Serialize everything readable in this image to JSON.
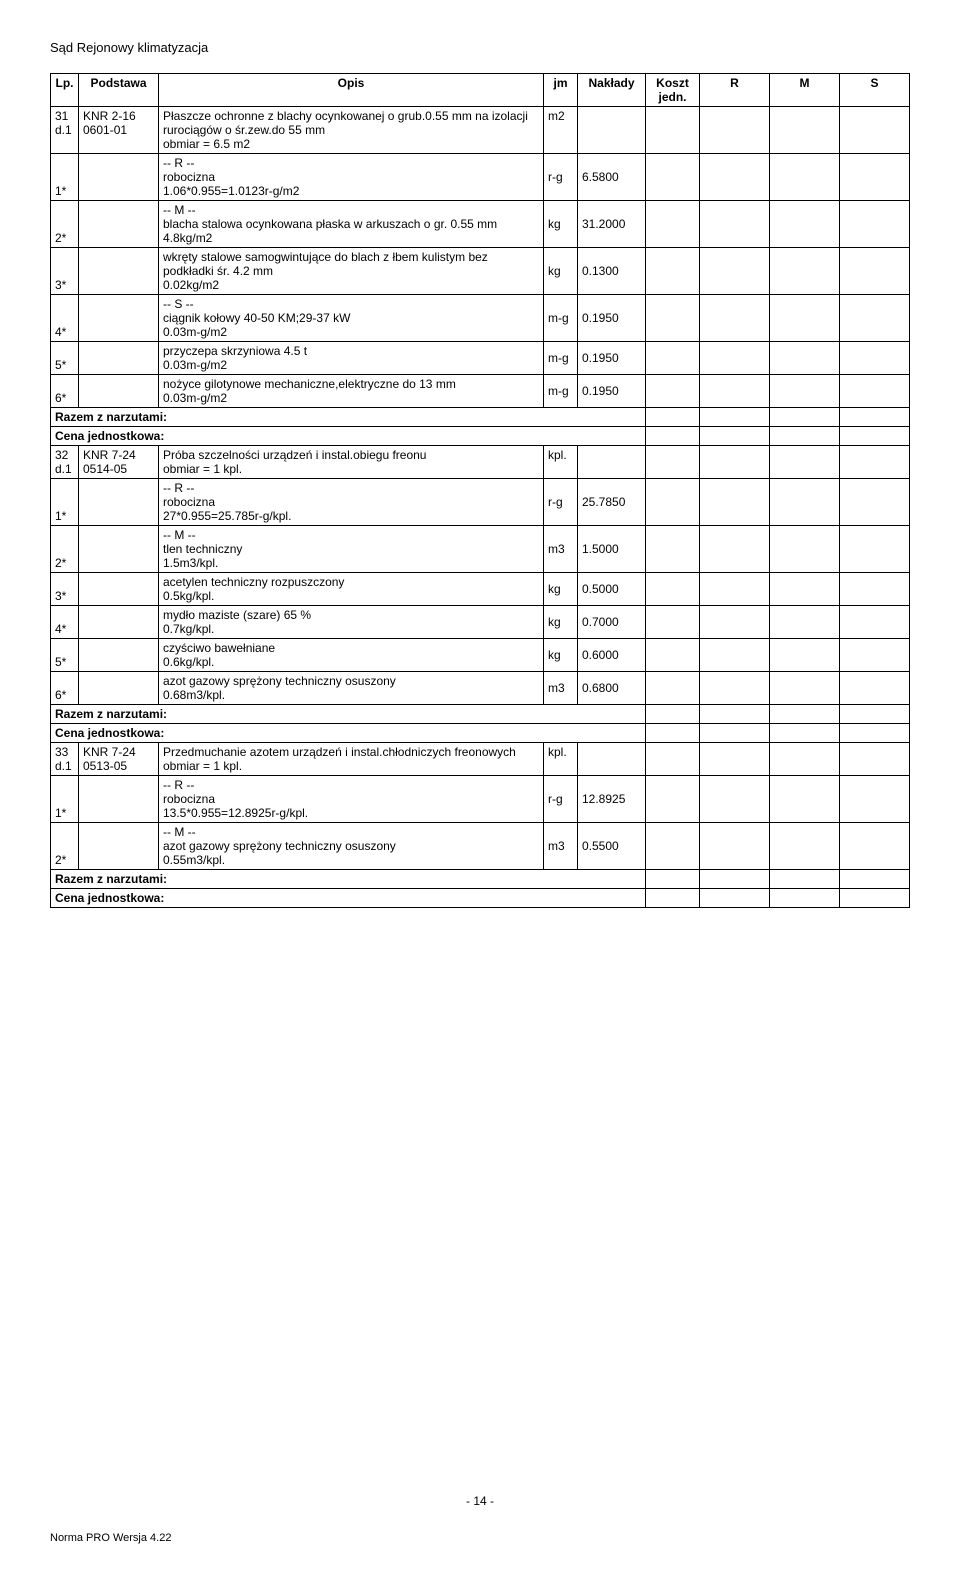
{
  "doc_title": "Sąd Rejonowy klimatyzacja",
  "headers": {
    "lp": "Lp.",
    "podstawa": "Podstawa",
    "opis": "Opis",
    "jm": "jm",
    "naklady": "Nakłady",
    "koszt": "Koszt jedn.",
    "r": "R",
    "m": "M",
    "s": "S"
  },
  "rows": [
    {
      "lp1": "31",
      "lp2": "d.1",
      "pod1": "KNR 2-16",
      "pod2": "0601-01",
      "opis": "Płaszcze ochronne z blachy ocynkowanej o grub.0.55 mm na izolacji rurociągów o śr.zew.do 55 mm\nobmiar  =  6.5 m2",
      "jm": "m2",
      "nak": ""
    },
    {
      "lp": "1*",
      "opis": "-- R --\nrobocizna\n1.06*0.955=1.0123r-g/m2",
      "jm": "r-g",
      "nak": "6.5800"
    },
    {
      "lp": "2*",
      "opis": "-- M --\nblacha stalowa ocynkowana płaska w arkuszach o gr. 0.55 mm\n4.8kg/m2",
      "jm": "kg",
      "nak": "31.2000",
      "nbb": true
    },
    {
      "lp": "3*",
      "opis": "wkręty stalowe samogwintujące do blach z łbem kulistym bez podkładki śr. 4.2 mm\n0.02kg/m2",
      "jm": "kg",
      "nak": "0.1300",
      "nbt": true
    },
    {
      "lp": "4*",
      "opis": "-- S --\nciągnik kołowy 40-50 KM;29-37 kW\n0.03m-g/m2",
      "jm": "m-g",
      "nak": "0.1950",
      "nbb": true
    },
    {
      "lp": "5*",
      "opis": "przyczepa skrzyniowa 4.5 t\n0.03m-g/m2",
      "jm": "m-g",
      "nak": "0.1950",
      "nbt": true,
      "nbb": true
    },
    {
      "lp": "6*",
      "opis": "nożyce gilotynowe mechaniczne,elektryczne do 13 mm\n0.03m-g/m2",
      "jm": "m-g",
      "nak": "0.1950",
      "nbt": true
    },
    {
      "summary": "Razem z narzutami:"
    },
    {
      "summary": "Cena jednostkowa:"
    },
    {
      "lp1": "32",
      "lp2": "d.1",
      "pod1": "KNR 7-24",
      "pod2": "0514-05",
      "opis": "Próba szczelności urządzeń i instal.obiegu freonu\nobmiar  =  1 kpl.",
      "jm": "kpl.",
      "nak": ""
    },
    {
      "lp": "1*",
      "opis": "-- R --\nrobocizna\n27*0.955=25.785r-g/kpl.",
      "jm": "r-g",
      "nak": "25.7850"
    },
    {
      "lp": "2*",
      "opis": "-- M --\ntlen techniczny\n1.5m3/kpl.",
      "jm": "m3",
      "nak": "1.5000",
      "nbb": true
    },
    {
      "lp": "3*",
      "opis": "acetylen techniczny rozpuszczony\n0.5kg/kpl.",
      "jm": "kg",
      "nak": "0.5000",
      "nbt": true,
      "nbb": true
    },
    {
      "lp": "4*",
      "opis": "mydło maziste (szare) 65 %\n0.7kg/kpl.",
      "jm": "kg",
      "nak": "0.7000",
      "nbt": true,
      "nbb": true
    },
    {
      "lp": "5*",
      "opis": "czyściwo bawełniane\n0.6kg/kpl.",
      "jm": "kg",
      "nak": "0.6000",
      "nbt": true,
      "nbb": true
    },
    {
      "lp": "6*",
      "opis": "azot gazowy sprężony techniczny osuszony\n0.68m3/kpl.",
      "jm": "m3",
      "nak": "0.6800",
      "nbt": true
    },
    {
      "summary": "Razem z narzutami:"
    },
    {
      "summary": "Cena jednostkowa:"
    },
    {
      "lp1": "33",
      "lp2": "d.1",
      "pod1": "KNR 7-24",
      "pod2": "0513-05",
      "opis": "Przedmuchanie azotem urządzeń i instal.chłodniczych freonowych\nobmiar  =  1 kpl.",
      "jm": "kpl.",
      "nak": ""
    },
    {
      "lp": "1*",
      "opis": "-- R --\nrobocizna\n13.5*0.955=12.8925r-g/kpl.",
      "jm": "r-g",
      "nak": "12.8925"
    },
    {
      "lp": "2*",
      "opis": "-- M --\nazot gazowy sprężony techniczny osuszony\n0.55m3/kpl.",
      "jm": "m3",
      "nak": "0.5500"
    },
    {
      "summary": "Razem z narzutami:"
    },
    {
      "summary": "Cena jednostkowa:"
    }
  ],
  "footer_page": "- 14 -",
  "footer_left": "Norma PRO Wersja 4.22"
}
